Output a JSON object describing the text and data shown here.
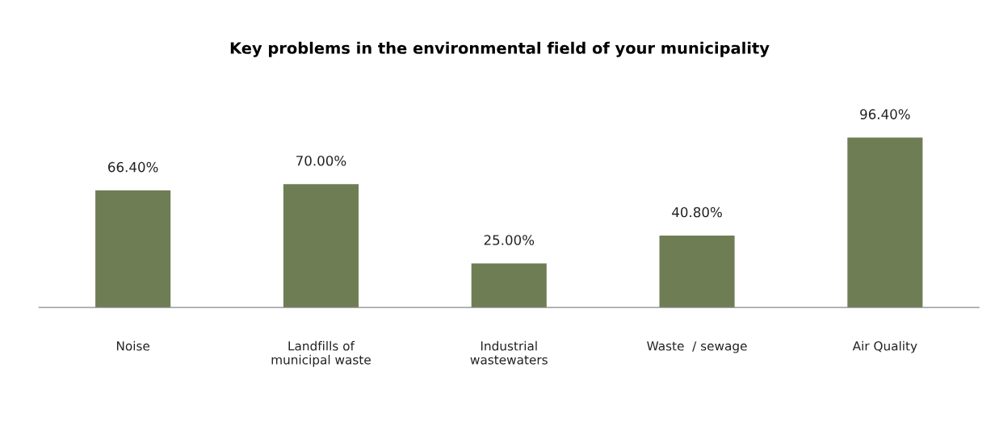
{
  "chart_data": {
    "type": "bar",
    "title": "Key problems in the environmental field of your municipality",
    "categories": [
      "Noise",
      "Landfills of\nmunicipal waste",
      "Industrial\nwastewaters",
      "Waste  / sewage",
      "Air Quality"
    ],
    "values": [
      66.4,
      70.0,
      25.0,
      40.8,
      96.4
    ],
    "value_labels": [
      "66.40%",
      "70.00%",
      "25.00%",
      "40.80%",
      "96.40%"
    ],
    "color": "#6f7d54",
    "grid": false,
    "legend": false
  }
}
